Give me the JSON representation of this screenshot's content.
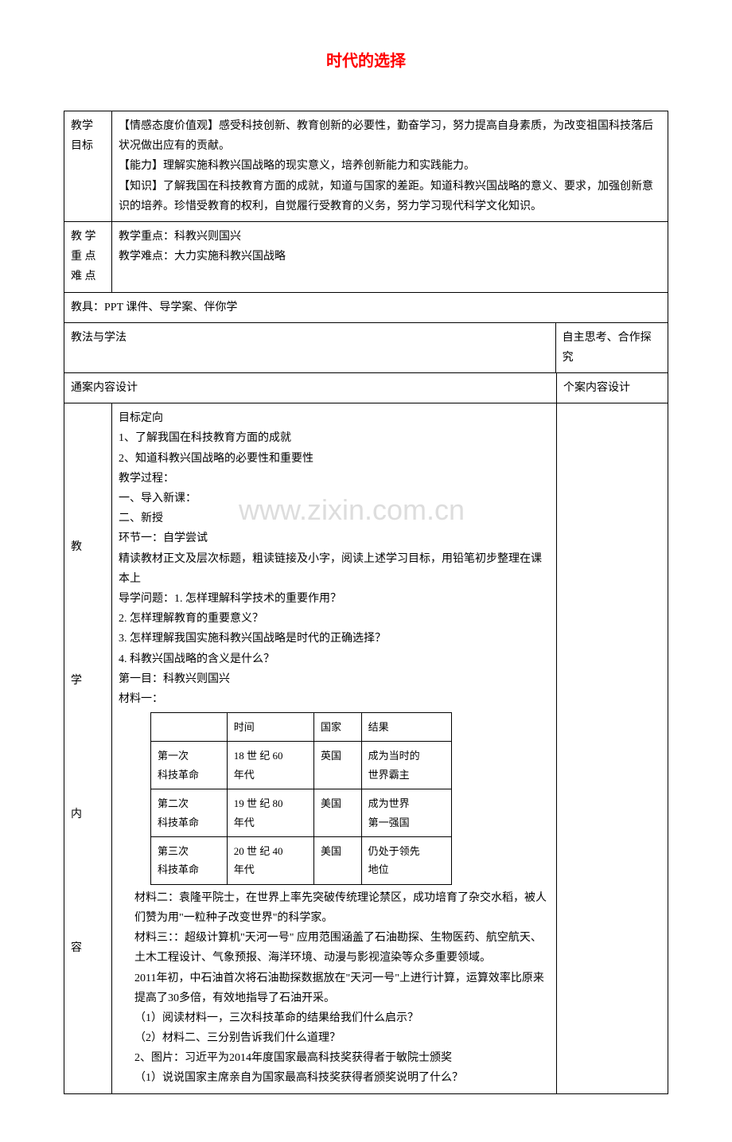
{
  "title": "时代的选择",
  "watermark": "www.zixin.com.cn",
  "rows": {
    "r1_label": "教学\n目标",
    "r1_content": "【情感态度价值观】感受科技创新、教育创新的必要性，勤奋学习，努力提高自身素质，为改变祖国科技落后状况做出应有的贡献。\n【能力】理解实施科教兴国战略的现实意义，培养创新能力和实践能力。\n【知识】了解我国在科技教育方面的成就，知道与国家的差距。知道科教兴国战略的意义、要求，加强创新意识的培养。珍惜受教育的权利，自觉履行受教育的义务，努力学习现代科学文化知识。",
    "r2_label": "教 学\n重 点\n难 点",
    "r2_content": "教学重点：科教兴则国兴\n教学难点：大力实施科教兴国战略",
    "r3_full": "教具：PPT 课件、导学案、伴你学",
    "r4_left": "教法与学法",
    "r4_right": "自主思考、合作探究",
    "r5_left": "通案内容设计",
    "r5_right": "个案内容设计",
    "r6_label": "教\n\n\n\n学\n\n\n\n内\n\n\n\n容",
    "r6_content_top": "目标定向\n1、了解我国在科技教育方面的成就\n2、知道科教兴国战略的必要性和重要性\n教学过程：\n一、导入新课：\n二、新授\n环节一：自学尝试\n精读教材正文及层次标题，粗读链接及小字，阅读上述学习目标，用铅笔初步整理在课本上\n导学问题：1. 怎样理解科学技术的重要作用？\n2. 怎样理解教育的重要意义？\n3. 怎样理解我国实施科教兴国战略是时代的正确选择？\n4. 科教兴国战略的含义是什么？\n第一目：科教兴则国兴\n材料一：",
    "r6_content_mid": "材料二：袁隆平院士，在世界上率先突破传统理论禁区，成功培育了杂交水稻，被人们赞为用\"一粒种子改变世界\"的科学家。\n材料三：：超级计算机\"天河一号\" 应用范围涵盖了石油勘探、生物医药、航空航天、土木工程设计、气象预报、海洋环境、动漫与影视渲染等众多重要领域。\n    2011年初，中石油首次将石油勘探数据放在\"天河一号\"上进行计算，运算效率比原来提高了30多倍，有效地指导了石油开采。\n（1）阅读材料一，三次科技革命的结果给我们什么启示？\n（2）材料二、三分别告诉我们什么道理？\n2、图片：习近平为2014年度国家最高科技奖获得者于敏院士颁奖\n（1）说说国家主席亲自为国家最高科技奖获得者颁奖说明了什么？"
  },
  "inner_table": {
    "headers": [
      "",
      "时间",
      "国家",
      "结果"
    ],
    "rows": [
      [
        "第一次\n科技革命",
        "18 世 纪 60\n年代",
        "英国",
        "成为当时的\n世界霸主"
      ],
      [
        "第二次\n科技革命",
        "19 世 纪 80\n年代",
        "美国",
        "成为世界\n第一强国"
      ],
      [
        "第三次\n科技革命",
        "20 世 纪 40\n年代",
        "美国",
        "仍处于领先\n地位"
      ]
    ]
  },
  "colors": {
    "title_color": "#ff0000",
    "border_color": "#000000",
    "watermark_color": "#dddddd",
    "background": "#ffffff"
  }
}
